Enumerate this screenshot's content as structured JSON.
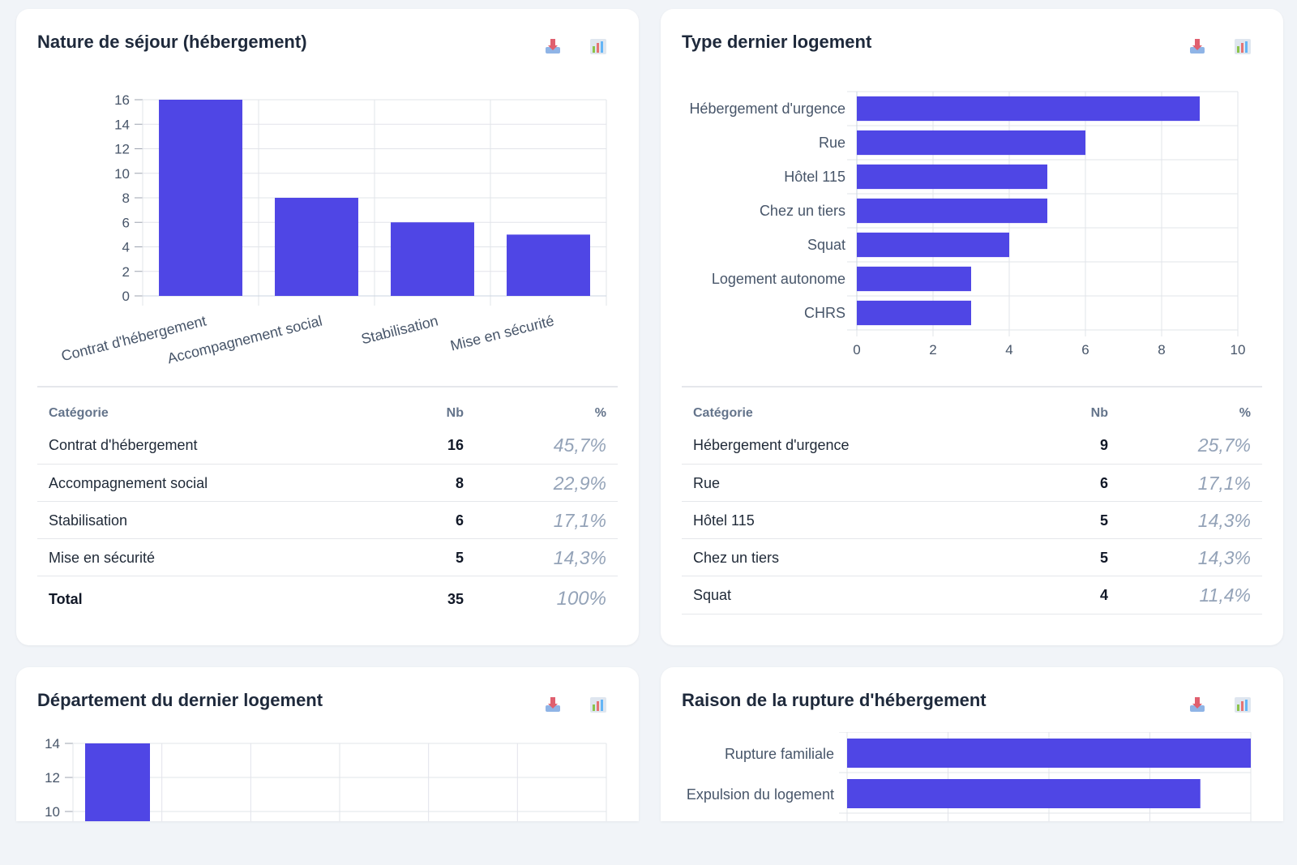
{
  "colors": {
    "bar": "#4f46e5",
    "grid": "#e2e4ea",
    "page_bg": "#f1f4f8",
    "card_bg": "#ffffff"
  },
  "icons": [
    "download-icon",
    "bar-chart-icon"
  ],
  "cards": [
    {
      "title": "Nature de séjour (hébergement)",
      "table": {
        "headers": [
          "Catégorie",
          "Nb",
          "%"
        ],
        "rows": [
          {
            "label": "Contrat d'hébergement",
            "nb": "16",
            "pct": "45,7%"
          },
          {
            "label": "Accompagnement social",
            "nb": "8",
            "pct": "22,9%"
          },
          {
            "label": "Stabilisation",
            "nb": "6",
            "pct": "17,1%"
          },
          {
            "label": "Mise en sécurité",
            "nb": "5",
            "pct": "14,3%"
          }
        ],
        "total": {
          "label": "Total",
          "nb": "35",
          "pct": "100%"
        }
      }
    },
    {
      "title": "Type dernier logement",
      "table": {
        "headers": [
          "Catégorie",
          "Nb",
          "%"
        ],
        "rows": [
          {
            "label": "Hébergement d'urgence",
            "nb": "9",
            "pct": "25,7%"
          },
          {
            "label": "Rue",
            "nb": "6",
            "pct": "17,1%"
          },
          {
            "label": "Hôtel 115",
            "nb": "5",
            "pct": "14,3%"
          },
          {
            "label": "Chez un tiers",
            "nb": "5",
            "pct": "14,3%"
          },
          {
            "label": "Squat",
            "nb": "4",
            "pct": "11,4%"
          }
        ]
      }
    },
    {
      "title": "Département du dernier logement"
    },
    {
      "title": "Raison de la rupture d'hébergement"
    }
  ],
  "chart_data": [
    {
      "type": "bar",
      "title": "Nature de séjour (hébergement)",
      "categories": [
        "Contrat d'hébergement",
        "Accompagnement social",
        "Stabilisation",
        "Mise en sécurité"
      ],
      "values": [
        16,
        8,
        6,
        5
      ],
      "yticks": [
        0,
        2,
        4,
        6,
        8,
        10,
        12,
        14,
        16
      ],
      "ylim": [
        0,
        16
      ],
      "grid": true
    },
    {
      "type": "bar",
      "orientation": "horizontal",
      "title": "Type dernier logement",
      "categories": [
        "Hébergement d'urgence",
        "Rue",
        "Hôtel 115",
        "Chez un tiers",
        "Squat",
        "Logement autonome",
        "CHRS"
      ],
      "values": [
        9,
        6,
        5,
        5,
        4,
        3,
        3
      ],
      "xticks": [
        0,
        2,
        4,
        6,
        8,
        10
      ],
      "xlim": [
        0,
        10
      ],
      "grid": true
    },
    {
      "type": "bar",
      "title": "Département du dernier logement",
      "values": [
        14
      ],
      "yticks": [
        10,
        12,
        14
      ],
      "grid": true
    },
    {
      "type": "bar",
      "orientation": "horizontal",
      "title": "Raison de la rupture d'hébergement",
      "categories": [
        "Rupture familiale",
        "Expulsion du logement"
      ],
      "grid": true
    }
  ]
}
